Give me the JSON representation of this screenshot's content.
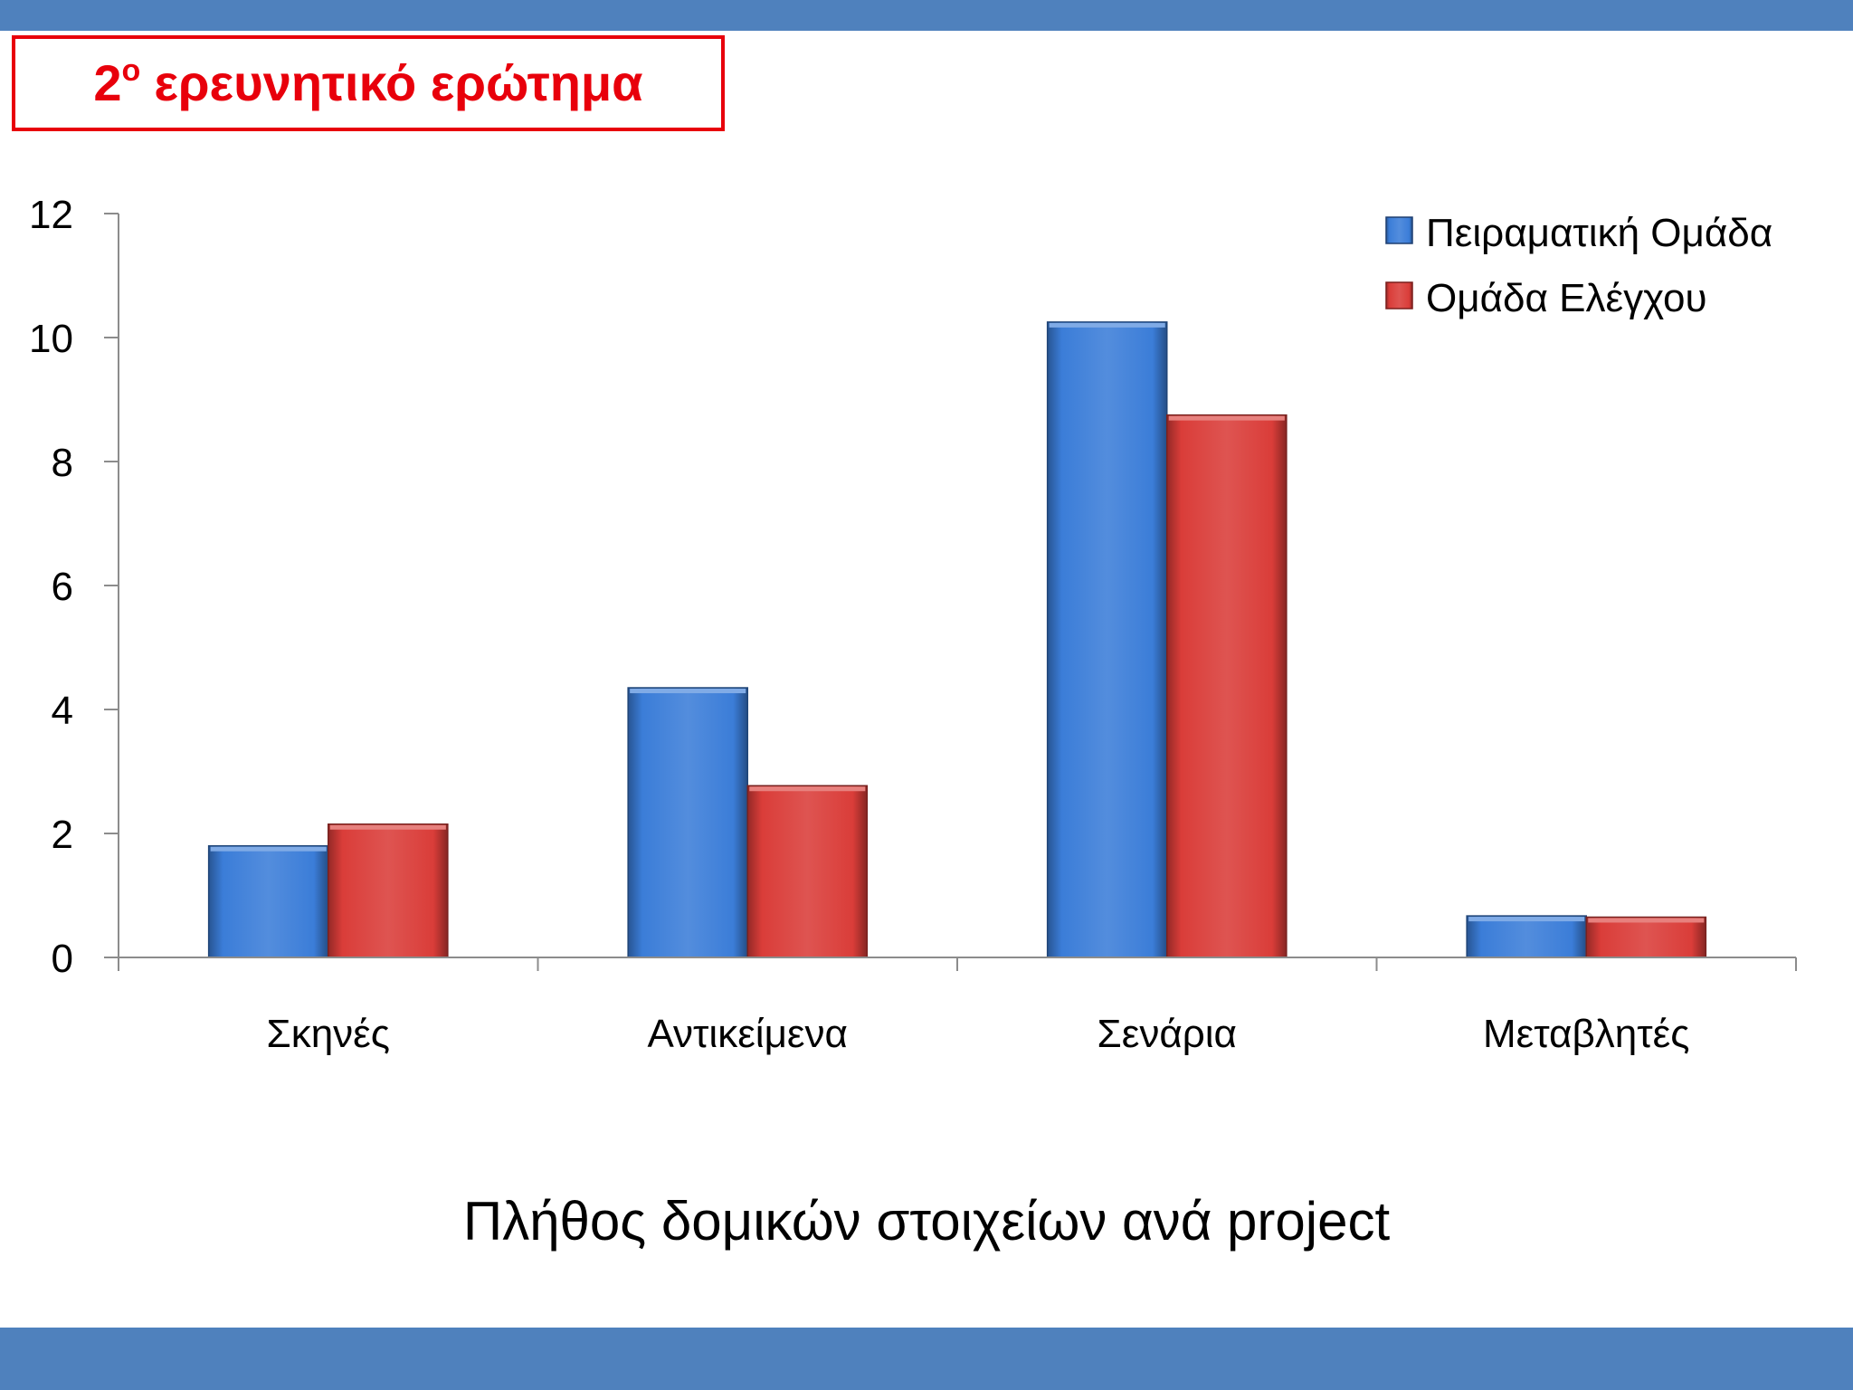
{
  "slide": {
    "title": {
      "number": "2",
      "ordinal": "ο",
      "text": "ερευνητικό ερώτημα"
    }
  },
  "colors": {
    "band": "#4F81BD",
    "title_red": "#E8000B",
    "axis": "#8C8C8C"
  },
  "chart_data": {
    "type": "bar",
    "categories": [
      "Σκηνές",
      "Αντικείμενα",
      "Σενάρια",
      "Μεταβλητές"
    ],
    "series": [
      {
        "name": "Πειραματική Ομάδα",
        "values": [
          1.8,
          4.35,
          10.25,
          0.67
        ],
        "color": "#3B7DD8"
      },
      {
        "name": "Ομάδα Ελέγχου",
        "values": [
          2.15,
          2.77,
          8.75,
          0.65
        ],
        "color": "#DA3D39"
      }
    ],
    "yticks": [
      0,
      2,
      4,
      6,
      8,
      10,
      12
    ],
    "ylim": [
      0,
      12
    ],
    "grid": false,
    "legend": "top-right",
    "caption": "Πλήθος δομικών στοιχείων ανά project"
  }
}
